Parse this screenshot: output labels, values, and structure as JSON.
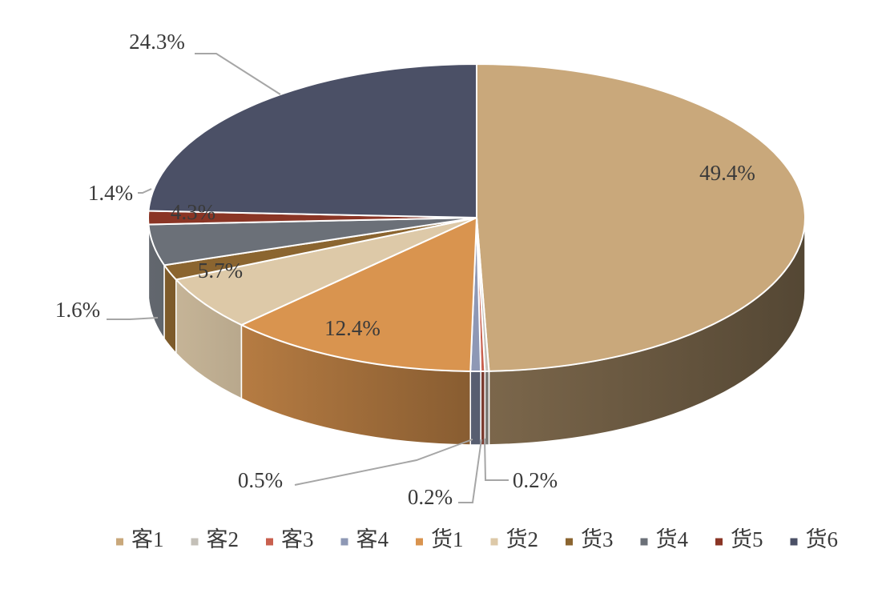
{
  "chart_data": {
    "type": "pie",
    "style": "3d-pie",
    "title": "",
    "categories": [
      "客1",
      "客2",
      "客3",
      "客4",
      "货1",
      "货2",
      "货3",
      "货4",
      "货5",
      "货6"
    ],
    "values": [
      49.4,
      0.2,
      0.2,
      0.5,
      12.4,
      5.7,
      1.6,
      4.3,
      1.4,
      24.3
    ],
    "labels": [
      "49.4%",
      "0.2%",
      "0.2%",
      "0.5%",
      "12.4%",
      "5.7%",
      "1.6%",
      "4.3%",
      "1.4%",
      "24.3%"
    ],
    "colors": [
      "#c9a87b",
      "#c4c0b8",
      "#c9604e",
      "#8e98b5",
      "#d9944f",
      "#ddc9a8",
      "#8b6530",
      "#6b7078",
      "#8a3525",
      "#4b5066"
    ],
    "legend": {
      "position": "bottom",
      "entries": [
        "客1",
        "客2",
        "客3",
        "客4",
        "货1",
        "货2",
        "货3",
        "货4",
        "货5",
        "货6"
      ]
    }
  }
}
